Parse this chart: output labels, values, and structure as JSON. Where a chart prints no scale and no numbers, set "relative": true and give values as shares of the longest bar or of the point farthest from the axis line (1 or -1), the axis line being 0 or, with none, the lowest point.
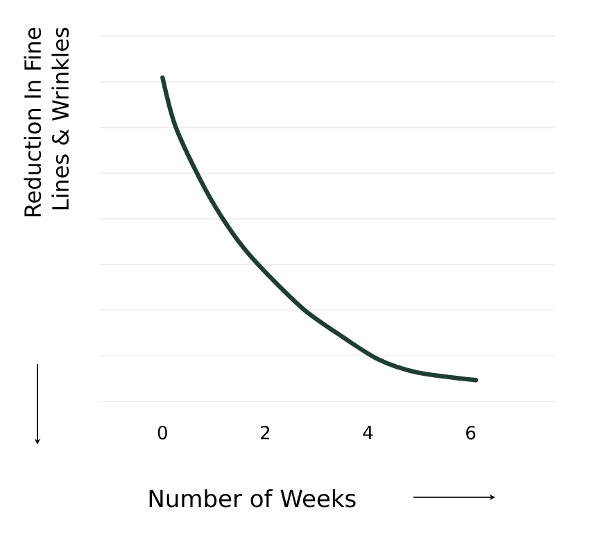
{
  "chart_data": {
    "type": "line",
    "relative": true,
    "xlabel": "Number of Weeks",
    "ylabel": "Reduction In Fine Lines & Wrinkles",
    "x": [
      0,
      0.25,
      0.75,
      1.15,
      1.6,
      2.15,
      2.78,
      3.5,
      4.2,
      4.95,
      6.1
    ],
    "values": [
      1,
      0.85,
      0.68,
      0.57,
      0.47,
      0.375,
      0.28,
      0.2,
      0.13,
      0.09,
      0.066
    ],
    "color": "#1f3d33",
    "xlim": [
      -1.22,
      7.64
    ],
    "xticks": [
      0,
      2,
      4,
      6
    ],
    "grid": "y",
    "marker": "none",
    "line_style": "solid"
  }
}
